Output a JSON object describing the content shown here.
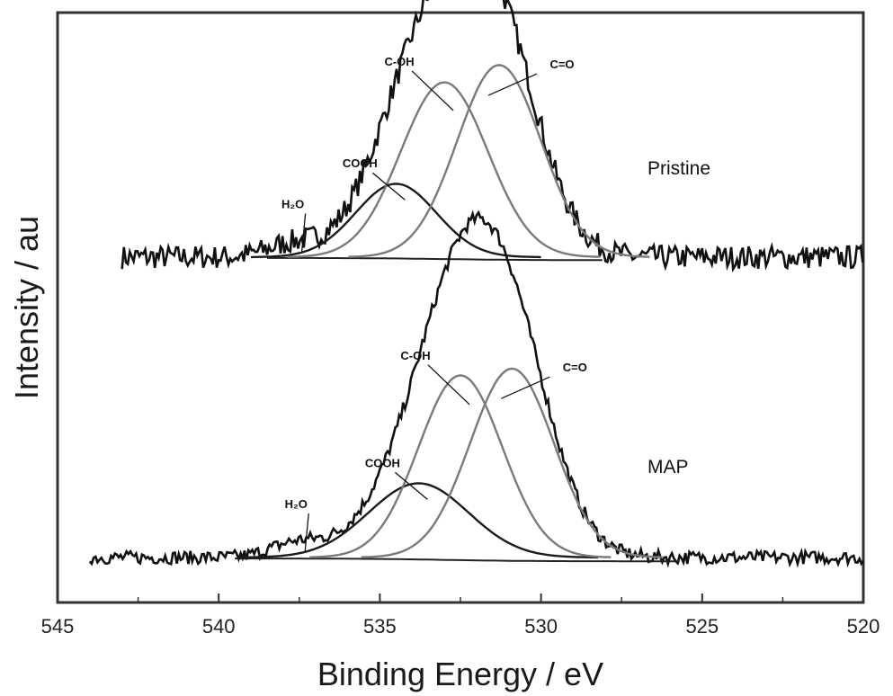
{
  "chart_data": {
    "type": "line",
    "title": "",
    "xlabel": "Binding Energy / eV",
    "ylabel": "Intensity / au",
    "xlim": [
      545,
      520
    ],
    "x_reversed": true,
    "x_ticks": [
      "545",
      "540",
      "535",
      "530",
      "525",
      "520"
    ],
    "y_ticks": [],
    "grid": false,
    "panels": [
      {
        "sample": "Pristine",
        "baseline": 0.82,
        "x_range": [
          543,
          520
        ],
        "noise": 0.05,
        "components": [
          {
            "label": "H₂O",
            "center": 537.7,
            "height": 0.12,
            "sigma": 0.8
          },
          {
            "label": "COOH",
            "center": 534.5,
            "height": 0.68,
            "sigma": 1.25
          },
          {
            "label": "C-OH",
            "center": 533.0,
            "height": 1.62,
            "sigma": 1.35
          },
          {
            "label": "C=O",
            "center": 531.3,
            "height": 1.78,
            "sigma": 1.3
          }
        ]
      },
      {
        "sample": "MAP",
        "baseline": 0.6,
        "x_range": [
          544,
          520
        ],
        "noise": 0.035,
        "components": [
          {
            "label": "H₂O",
            "center": 537.6,
            "height": 0.1,
            "sigma": 0.8
          },
          {
            "label": "COOH",
            "center": 533.8,
            "height": 0.55,
            "sigma": 1.55
          },
          {
            "label": "C-OH",
            "center": 532.5,
            "height": 1.35,
            "sigma": 1.3
          },
          {
            "label": "C=O",
            "center": 530.9,
            "height": 1.4,
            "sigma": 1.3
          }
        ]
      }
    ]
  }
}
